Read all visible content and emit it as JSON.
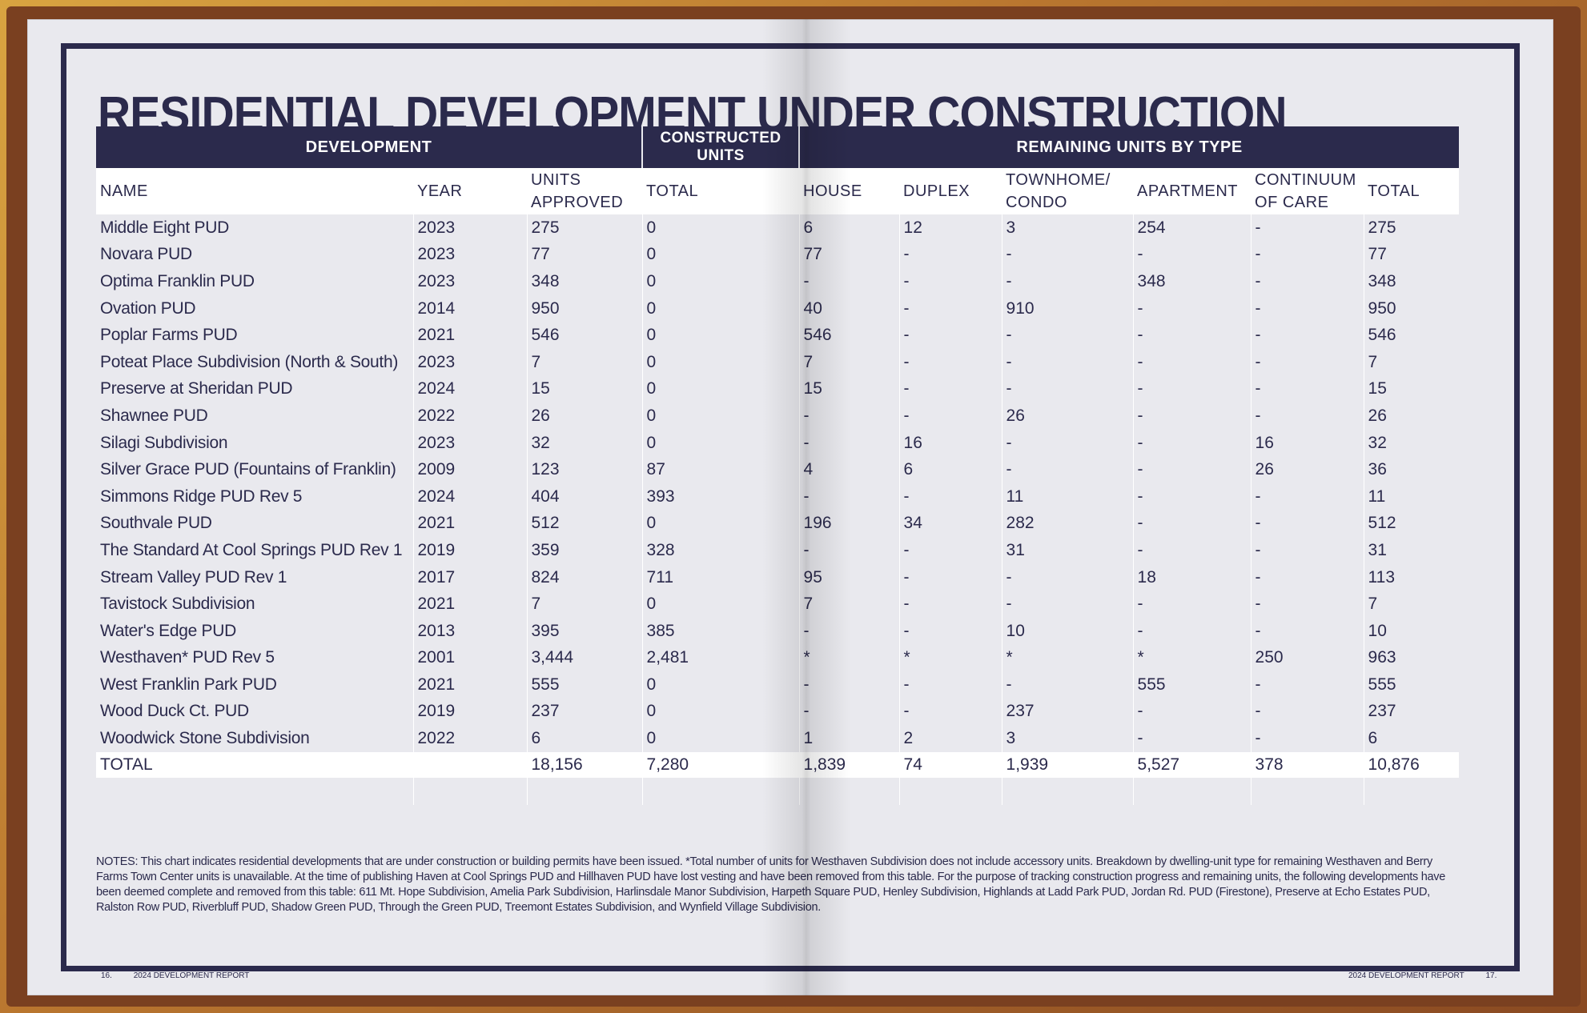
{
  "title": "RESIDENTIAL DEVELOPMENT UNDER CONSTRUCTION",
  "table": {
    "groups": {
      "development": "DEVELOPMENT",
      "constructed": "CONSTRUCTED UNITS",
      "remaining": "REMAINING UNITS BY TYPE"
    },
    "headers": {
      "name": "NAME",
      "year": "YEAR",
      "units_approved": "UNITS APPROVED",
      "constructed_total": "TOTAL",
      "house": "HOUSE",
      "duplex": "DUPLEX",
      "townhome": "TOWNHOME/ CONDO",
      "apartment": "APARTMENT",
      "continuum": "CONTINUUM OF CARE",
      "total": "TOTAL"
    },
    "rows": [
      [
        "Middle Eight PUD",
        "2023",
        "275",
        "0",
        "6",
        "12",
        "3",
        "254",
        "-",
        "275"
      ],
      [
        "Novara PUD",
        "2023",
        "77",
        "0",
        "77",
        "-",
        "-",
        "-",
        "-",
        "77"
      ],
      [
        "Optima Franklin PUD",
        "2023",
        "348",
        "0",
        "-",
        "-",
        "-",
        "348",
        "-",
        "348"
      ],
      [
        "Ovation PUD",
        "2014",
        "950",
        "0",
        "40",
        "-",
        "910",
        "-",
        "-",
        "950"
      ],
      [
        "Poplar Farms PUD",
        "2021",
        "546",
        "0",
        "546",
        "-",
        "-",
        "-",
        "-",
        "546"
      ],
      [
        "Poteat Place Subdivision (North & South)",
        "2023",
        "7",
        "0",
        "7",
        "-",
        "-",
        "-",
        "-",
        "7"
      ],
      [
        "Preserve at Sheridan PUD",
        "2024",
        "15",
        "0",
        "15",
        "-",
        "-",
        "-",
        "-",
        "15"
      ],
      [
        "Shawnee PUD",
        "2022",
        "26",
        "0",
        "-",
        "-",
        "26",
        "-",
        "-",
        "26"
      ],
      [
        "Silagi Subdivision",
        "2023",
        "32",
        "0",
        "-",
        "16",
        "-",
        "-",
        "16",
        "32"
      ],
      [
        "Silver Grace PUD (Fountains of Franklin)",
        "2009",
        "123",
        "87",
        "4",
        "6",
        "-",
        "-",
        "26",
        "36"
      ],
      [
        "Simmons Ridge PUD Rev 5",
        "2024",
        "404",
        "393",
        "-",
        "-",
        "11",
        "-",
        "-",
        "11"
      ],
      [
        "Southvale PUD",
        "2021",
        "512",
        "0",
        "196",
        "34",
        "282",
        "-",
        "-",
        "512"
      ],
      [
        "The Standard At Cool Springs PUD Rev 1",
        "2019",
        "359",
        "328",
        "-",
        "-",
        "31",
        "-",
        "-",
        "31"
      ],
      [
        "Stream Valley PUD Rev 1",
        "2017",
        "824",
        "711",
        "95",
        "-",
        "-",
        "18",
        "-",
        "113"
      ],
      [
        "Tavistock Subdivision",
        "2021",
        "7",
        "0",
        "7",
        "-",
        "-",
        "-",
        "-",
        "7"
      ],
      [
        "Water's Edge PUD",
        "2013",
        "395",
        "385",
        "-",
        "-",
        "10",
        "-",
        "-",
        "10"
      ],
      [
        "Westhaven* PUD Rev 5",
        "2001",
        "3,444",
        "2,481",
        "*",
        "*",
        "*",
        "*",
        "250",
        "963"
      ],
      [
        "West Franklin Park PUD",
        "2021",
        "555",
        "0",
        "-",
        "-",
        "-",
        "555",
        "-",
        "555"
      ],
      [
        "Wood Duck Ct. PUD",
        "2019",
        "237",
        "0",
        "-",
        "-",
        "237",
        "-",
        "-",
        "237"
      ],
      [
        "Woodwick Stone Subdivision",
        "2022",
        "6",
        "0",
        "1",
        "2",
        "3",
        "-",
        "-",
        "6"
      ]
    ],
    "total_row": [
      "TOTAL",
      "",
      "18,156",
      "7,280",
      "1,839",
      "74",
      "1,939",
      "5,527",
      "378",
      "10,876"
    ]
  },
  "notes": "NOTES: This chart indicates residential developments that are under construction or building permits have been issued.  *Total number of units for Westhaven Subdivision does not include accessory units.  Breakdown by dwelling-unit type for remaining Westhaven and Berry Farms Town Center units is unavailable.  At the time of publishing Haven at Cool Springs PUD and Hillhaven PUD have lost vesting and have been removed from this table. For the purpose of tracking construction progress and remaining units, the following developments have been deemed complete and removed from this table: 611 Mt. Hope Subdivision, Amelia Park Subdivision, Harlinsdale Manor Subdivision, Harpeth Square PUD, Henley Subdivision, Highlands at Ladd Park PUD, Jordan Rd. PUD (Firestone), Preserve at Echo Estates PUD, Ralston Row PUD, Riverbluff PUD, Shadow Green PUD, Through the Green PUD, Treemont Estates Subdivision, and Wynfield Village Subdivision.",
  "footer": {
    "left_page": "16.",
    "left_label": "2024 DEVELOPMENT REPORT",
    "right_label": "2024 DEVELOPMENT REPORT",
    "right_page": "17."
  }
}
